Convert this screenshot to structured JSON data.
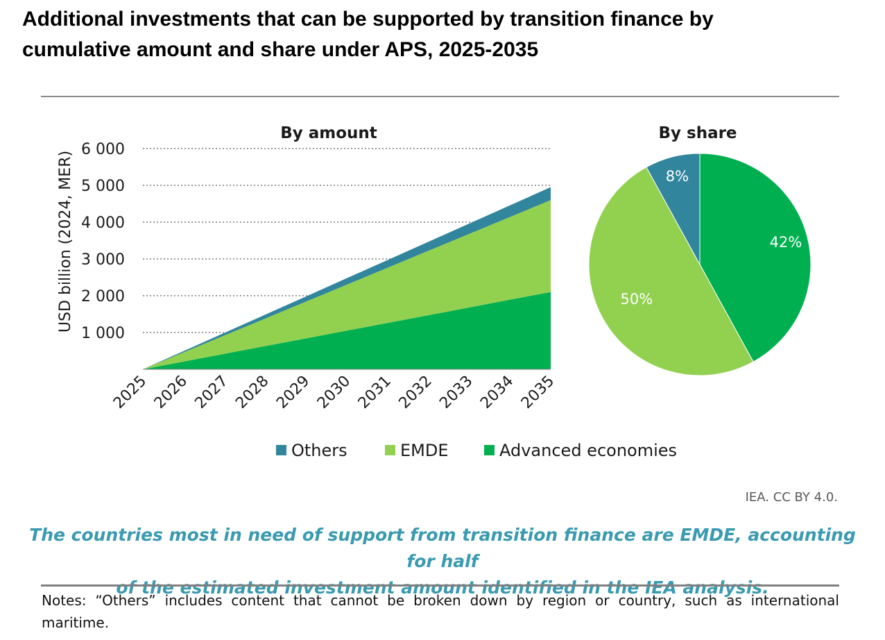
{
  "title_lines": [
    "Additional investments that can be supported by transition finance by",
    "cumulative amount and share under APS, 2025-2035"
  ],
  "credit": "IEA. CC BY 4.0.",
  "caption_lines": [
    "The countries most in need of support from transition finance are EMDE, accounting for half",
    "of the estimated investment amount identified in the IEA analysis."
  ],
  "notes": "Notes: “Others” includes content that cannot be broken down by region or country, such as international maritime.",
  "chart_data": [
    {
      "type": "area",
      "stacked": true,
      "title": "By amount",
      "ylabel": "USD billion (2024, MER)",
      "x": [
        "2025",
        "2026",
        "2027",
        "2028",
        "2029",
        "2030",
        "2031",
        "2032",
        "2033",
        "2034",
        "2035"
      ],
      "ylim": [
        0,
        6000
      ],
      "yticks": [
        1000,
        2000,
        3000,
        4000,
        5000,
        6000
      ],
      "ytick_labels": [
        "1 000",
        "2 000",
        "3 000",
        "4 000",
        "5 000",
        "6 000"
      ],
      "grid": "dotted horizontal",
      "series": [
        {
          "name": "Advanced economies",
          "color": "#00b050",
          "values": [
            0,
            210,
            420,
            630,
            840,
            1050,
            1260,
            1470,
            1680,
            1890,
            2100
          ]
        },
        {
          "name": "EMDE",
          "color": "#92d050",
          "values": [
            0,
            250,
            500,
            750,
            1000,
            1250,
            1500,
            1750,
            2000,
            2250,
            2500
          ]
        },
        {
          "name": "Others",
          "color": "#31859c",
          "values": [
            0,
            35,
            70,
            105,
            140,
            175,
            210,
            245,
            280,
            315,
            350
          ]
        }
      ]
    },
    {
      "type": "pie",
      "title": "By share",
      "slices": [
        {
          "name": "Advanced economies",
          "value": 42,
          "label": "42%",
          "color": "#00b050"
        },
        {
          "name": "EMDE",
          "value": 50,
          "label": "50%",
          "color": "#92d050"
        },
        {
          "name": "Others",
          "value": 8,
          "label": "8%",
          "color": "#31859c"
        }
      ]
    }
  ],
  "legend": [
    {
      "name": "Others",
      "color": "#31859c"
    },
    {
      "name": "EMDE",
      "color": "#92d050"
    },
    {
      "name": "Advanced economies",
      "color": "#00b050"
    }
  ]
}
